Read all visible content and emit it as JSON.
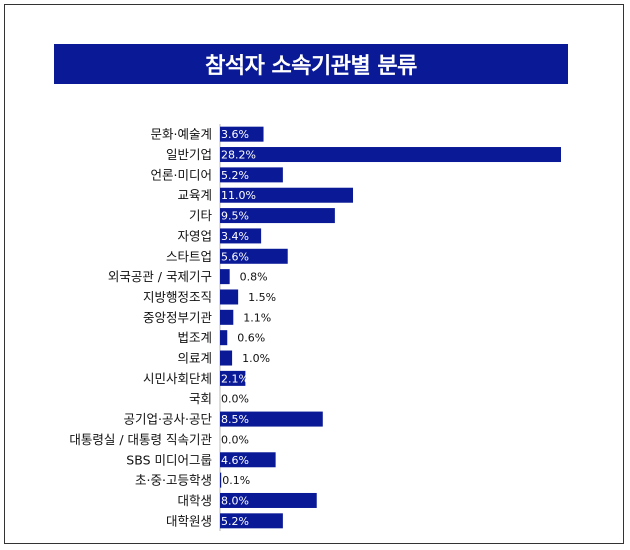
{
  "chart_data": {
    "type": "bar",
    "orientation": "horizontal",
    "title": "참석자 소속기관별 분류",
    "value_suffix": "%",
    "xlim": [
      0,
      28.2
    ],
    "grid": false,
    "colors": {
      "bar": "#0a1a96",
      "title_bg": "#0a1a96",
      "title_text": "#ffffff",
      "inside_label": "#ffffff",
      "outside_label": "#111111"
    },
    "categories": [
      "문화·예술계",
      "일반기업",
      "언론·미디어",
      "교육계",
      "기타",
      "자영업",
      "스타트업",
      "외국공관 / 국제기구",
      "지방행정조직",
      "중앙정부기관",
      "법조계",
      "의료계",
      "시민사회단체",
      "국회",
      "공기업·공사·공단",
      "대통령실 / 대통령 직속기관",
      "SBS 미디어그룹",
      "초·중·고등학생",
      "대학생",
      "대학원생"
    ],
    "values": [
      3.6,
      28.2,
      5.2,
      11.0,
      9.5,
      3.4,
      5.6,
      0.8,
      1.5,
      1.1,
      0.6,
      1.0,
      2.1,
      0.0,
      8.5,
      0.0,
      4.6,
      0.1,
      8.0,
      5.2
    ],
    "value_labels": [
      "3.6%",
      "28.2%",
      "5.2%",
      "11.0%",
      "9.5%",
      "3.4%",
      "5.6%",
      "0.8%",
      "1.5%",
      "1.1%",
      "0.6%",
      "1.0%",
      "2.1%",
      "0.0%",
      "8.5%",
      "0.0%",
      "4.6%",
      "0.1%",
      "8.0%",
      "5.2%"
    ]
  }
}
